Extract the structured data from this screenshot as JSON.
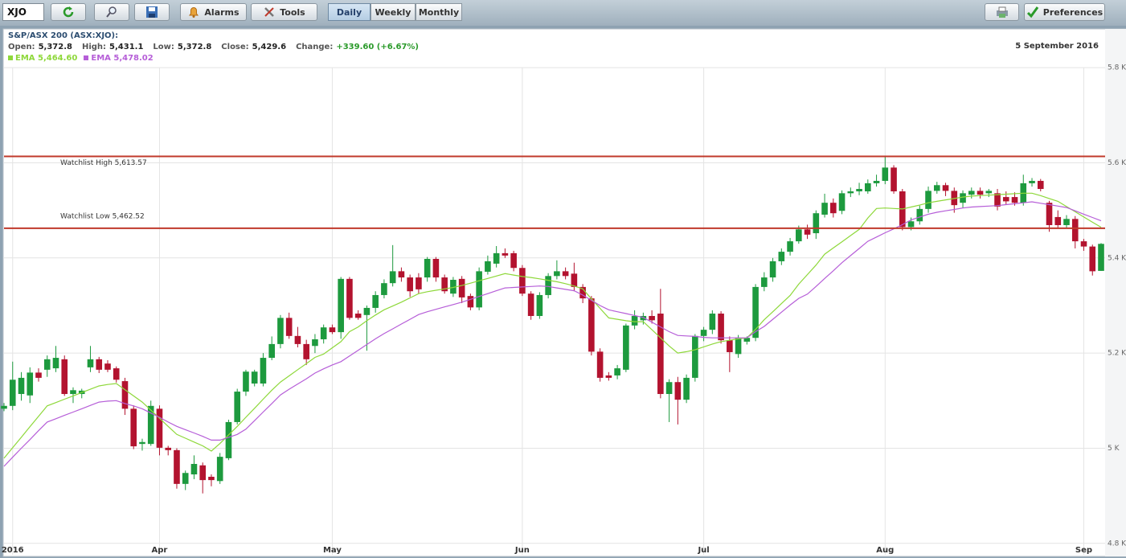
{
  "toolbar": {
    "symbol": "XJO",
    "buttons": [
      "Alarms",
      "Tools"
    ],
    "periods": [
      "Daily",
      "Weekly",
      "Monthly"
    ],
    "preferences": "Preferences"
  },
  "chart_data": {
    "type": "candlestick",
    "title": "S&P/ASX 200 (ASX:XJO):",
    "quote": [
      {
        "label": "Open:",
        "value": "5,372.8"
      },
      {
        "label": "High:",
        "value": "5,431.1"
      },
      {
        "label": "Low:",
        "value": "5,372.8"
      },
      {
        "label": "Close:",
        "value": "5,429.6"
      },
      {
        "label": "Change:",
        "value": "+339.60 (+6.67%)"
      }
    ],
    "date": "5 September 2016",
    "categories": [
      null,
      "2016",
      null,
      null,
      null,
      null,
      null,
      null,
      null,
      null,
      null,
      null,
      null,
      null,
      null,
      null,
      null,
      null,
      "Apr",
      null,
      null,
      null,
      null,
      null,
      null,
      null,
      null,
      null,
      null,
      null,
      null,
      null,
      null,
      null,
      null,
      null,
      null,
      null,
      "May",
      null,
      null,
      null,
      null,
      null,
      null,
      null,
      null,
      null,
      null,
      null,
      null,
      null,
      null,
      null,
      null,
      null,
      null,
      null,
      null,
      null,
      "Jun",
      null,
      null,
      null,
      null,
      null,
      null,
      null,
      null,
      null,
      null,
      null,
      null,
      null,
      null,
      null,
      null,
      null,
      null,
      null,
      null,
      "Jul",
      null,
      null,
      null,
      null,
      null,
      null,
      null,
      null,
      null,
      null,
      null,
      null,
      null,
      null,
      null,
      null,
      null,
      null,
      null,
      null,
      "Aug",
      null,
      null,
      null,
      null,
      null,
      null,
      null,
      null,
      null,
      null,
      null,
      null,
      null,
      null,
      null,
      null,
      null,
      null,
      null,
      null,
      null,
      null,
      "Sep",
      null,
      null
    ],
    "open": [
      5083,
      5089,
      5114,
      5111,
      5159,
      5165,
      5168,
      5187,
      5114,
      5114,
      5170,
      5187,
      5178,
      5168,
      5141,
      5083,
      5009,
      5009,
      5083,
      5001,
      4996,
      4925,
      4945,
      4964,
      4940,
      4931,
      4979,
      5055,
      5119,
      5136,
      5136,
      5190,
      5219,
      5274,
      5236,
      5219,
      5215,
      5229,
      5254,
      5244,
      5356,
      5283,
      5280,
      5295,
      5322,
      5347,
      5372,
      5359,
      5359,
      5359,
      5398,
      5359,
      5325,
      5356,
      5320,
      5296,
      5371,
      5388,
      5410,
      5410,
      5379,
      5325,
      5278,
      5322,
      5362,
      5372,
      5367,
      5339,
      5315,
      5203,
      5153,
      5153,
      5165,
      5258,
      5269,
      5278,
      5283,
      5114,
      5139,
      5102,
      5148,
      5236,
      5249,
      5283,
      5227,
      5198,
      5224,
      5232,
      5339,
      5359,
      5393,
      5413,
      5435,
      5460,
      5452,
      5491,
      5516,
      5499,
      5536,
      5540,
      5540,
      5557,
      5562,
      5590,
      5540,
      5465,
      5477,
      5503,
      5541,
      5553,
      5541,
      5516,
      5533,
      5541,
      5536,
      5536,
      5528,
      5528,
      5516,
      5557,
      5562,
      5516,
      5486,
      5469,
      5482,
      5435,
      5424,
      5372.8
    ],
    "high": [
      5095,
      5182,
      5160,
      5170,
      5168,
      5195,
      5215,
      5195,
      5128,
      5125,
      5215,
      5192,
      5185,
      5172,
      5148,
      5090,
      5020,
      5100,
      5090,
      5005,
      5000,
      4953,
      4985,
      4970,
      4945,
      4990,
      5060,
      5125,
      5165,
      5165,
      5200,
      5235,
      5280,
      5285,
      5255,
      5228,
      5240,
      5260,
      5260,
      5360,
      5360,
      5290,
      5300,
      5330,
      5355,
      5427,
      5380,
      5365,
      5368,
      5402,
      5402,
      5365,
      5360,
      5362,
      5325,
      5380,
      5405,
      5425,
      5420,
      5415,
      5385,
      5330,
      5328,
      5368,
      5395,
      5380,
      5390,
      5345,
      5320,
      5210,
      5160,
      5175,
      5262,
      5290,
      5285,
      5290,
      5335,
      5145,
      5150,
      5155,
      5240,
      5255,
      5290,
      5288,
      5235,
      5238,
      5235,
      5345,
      5370,
      5400,
      5420,
      5442,
      5468,
      5470,
      5500,
      5535,
      5525,
      5542,
      5548,
      5558,
      5565,
      5575,
      5612,
      5595,
      5545,
      5485,
      5510,
      5550,
      5560,
      5558,
      5548,
      5542,
      5548,
      5548,
      5545,
      5545,
      5540,
      5538,
      5575,
      5568,
      5566,
      5520,
      5500,
      5490,
      5488,
      5440,
      5428,
      5431.1
    ],
    "low": [
      5078,
      5080,
      5100,
      5095,
      5140,
      5150,
      5160,
      5110,
      5095,
      5105,
      5160,
      5158,
      5160,
      5138,
      5070,
      4998,
      4995,
      5005,
      4985,
      4985,
      4915,
      4912,
      4935,
      4905,
      4920,
      4925,
      4975,
      5050,
      5110,
      5130,
      5130,
      5185,
      5210,
      5230,
      5212,
      5175,
      5200,
      5220,
      5240,
      5230,
      5270,
      5270,
      5205,
      5285,
      5315,
      5340,
      5350,
      5318,
      5325,
      5350,
      5350,
      5325,
      5318,
      5305,
      5290,
      5290,
      5365,
      5380,
      5400,
      5372,
      5320,
      5270,
      5272,
      5315,
      5355,
      5355,
      5330,
      5305,
      5195,
      5140,
      5142,
      5145,
      5160,
      5250,
      5260,
      5262,
      5105,
      5055,
      5050,
      5095,
      5140,
      5225,
      5240,
      5220,
      5160,
      5190,
      5218,
      5225,
      5330,
      5350,
      5385,
      5405,
      5430,
      5440,
      5440,
      5485,
      5485,
      5492,
      5528,
      5532,
      5535,
      5550,
      5555,
      5535,
      5458,
      5458,
      5470,
      5495,
      5535,
      5530,
      5495,
      5505,
      5525,
      5525,
      5528,
      5500,
      5512,
      5510,
      5510,
      5550,
      5540,
      5455,
      5462,
      5462,
      5420,
      5415,
      5363,
      5372.8
    ],
    "close": [
      5089,
      5144,
      5148,
      5159,
      5148,
      5187,
      5190,
      5114,
      5122,
      5121,
      5187,
      5165,
      5165,
      5144,
      5083,
      5004,
      5013,
      5089,
      5001,
      4996,
      4925,
      4948,
      4967,
      4933,
      4933,
      4982,
      5055,
      5119,
      5161,
      5161,
      5190,
      5219,
      5274,
      5236,
      5219,
      5187,
      5229,
      5254,
      5244,
      5356,
      5274,
      5274,
      5295,
      5322,
      5347,
      5372,
      5359,
      5330,
      5334,
      5398,
      5359,
      5330,
      5354,
      5317,
      5296,
      5372,
      5393,
      5410,
      5405,
      5379,
      5325,
      5278,
      5322,
      5362,
      5372,
      5362,
      5339,
      5315,
      5203,
      5148,
      5148,
      5168,
      5258,
      5278,
      5278,
      5269,
      5114,
      5139,
      5102,
      5148,
      5236,
      5249,
      5283,
      5227,
      5202,
      5232,
      5232,
      5339,
      5359,
      5393,
      5413,
      5435,
      5460,
      5449,
      5494,
      5516,
      5494,
      5536,
      5540,
      5545,
      5557,
      5562,
      5590,
      5540,
      5465,
      5477,
      5503,
      5541,
      5553,
      5541,
      5511,
      5536,
      5541,
      5533,
      5541,
      5508,
      5519,
      5516,
      5557,
      5562,
      5545,
      5469,
      5469,
      5482,
      5435,
      5424,
      5372,
      5429.6
    ],
    "up_color": "#1d9a3e",
    "down_color": "#b3132f",
    "series": [
      {
        "name": "EMA 5,464.60",
        "color": "#8ed83a",
        "values": [
          4979,
          5001,
          5023,
          5045,
          5067,
          5089,
          5096,
          5103,
          5110,
          5117,
          5124,
          5131,
          5134,
          5136,
          5123,
          5110,
          5097,
          5080,
          5063,
          5046,
          5029,
          5021,
          5013,
          5005,
          4994,
          5010,
          5028,
          5046,
          5065,
          5084,
          5103,
          5122,
          5139,
          5152,
          5165,
          5178,
          5191,
          5198,
          5211,
          5224,
          5245,
          5255,
          5268,
          5280,
          5291,
          5299,
          5307,
          5316,
          5325,
          5329,
          5332,
          5335,
          5338,
          5342,
          5347,
          5352,
          5357,
          5362,
          5367,
          5364,
          5361,
          5359,
          5356,
          5353,
          5350,
          5346,
          5341,
          5335,
          5314,
          5294,
          5274,
          5271,
          5268,
          5266,
          5266,
          5249,
          5232,
          5215,
          5200,
          5203,
          5207,
          5213,
          5219,
          5224,
          5227,
          5230,
          5232,
          5250,
          5270,
          5287,
          5304,
          5321,
          5345,
          5365,
          5385,
          5408,
          5421,
          5434,
          5447,
          5460,
          5484,
          5504,
          5505,
          5504,
          5503,
          5507,
          5511,
          5516,
          5519,
          5522,
          5525,
          5528,
          5530,
          5531,
          5532,
          5533,
          5534,
          5535,
          5536,
          5536,
          5531,
          5525,
          5519,
          5508,
          5497,
          5486,
          5475,
          5464.6
        ]
      },
      {
        "name": "EMA 5,478.02",
        "color": "#b65ed8",
        "values": [
          4962,
          4981,
          5000,
          5018,
          5037,
          5055,
          5062,
          5069,
          5076,
          5083,
          5090,
          5097,
          5099,
          5100,
          5094,
          5089,
          5083,
          5074,
          5065,
          5055,
          5046,
          5039,
          5032,
          5025,
          5017,
          5017,
          5023,
          5029,
          5040,
          5058,
          5076,
          5094,
          5112,
          5124,
          5135,
          5146,
          5158,
          5167,
          5175,
          5182,
          5194,
          5206,
          5218,
          5230,
          5241,
          5251,
          5261,
          5271,
          5281,
          5287,
          5292,
          5297,
          5302,
          5307,
          5313,
          5319,
          5325,
          5331,
          5337,
          5338,
          5339,
          5340,
          5341,
          5340,
          5337,
          5334,
          5331,
          5322,
          5311,
          5300,
          5291,
          5287,
          5283,
          5279,
          5275,
          5265,
          5255,
          5245,
          5237,
          5236,
          5235,
          5233,
          5232,
          5232,
          5232,
          5232,
          5232,
          5245,
          5256,
          5271,
          5286,
          5301,
          5315,
          5324,
          5340,
          5357,
          5373,
          5390,
          5405,
          5420,
          5435,
          5444,
          5453,
          5461,
          5470,
          5480,
          5486,
          5492,
          5496,
          5499,
          5502,
          5505,
          5507,
          5508,
          5509,
          5510,
          5512,
          5514,
          5516,
          5518,
          5515,
          5512,
          5509,
          5506,
          5499,
          5492,
          5485,
          5478.02
        ]
      }
    ],
    "reference_lines": [
      {
        "label": "Watchlist High 5,613.57",
        "value": 5613.57
      },
      {
        "label": "Watchlist Low 5,462.52",
        "value": 5462.52
      }
    ],
    "reference_color": "#c0392b",
    "ylim": [
      4776,
      5878
    ],
    "yticks": [
      {
        "value": 4800,
        "label": "4.8 K"
      },
      {
        "value": 5000,
        "label": "5 K"
      },
      {
        "value": 5200,
        "label": "5.2 K"
      },
      {
        "value": 5400,
        "label": "5.4 K"
      },
      {
        "value": 5600,
        "label": "5.6 K"
      },
      {
        "value": 5800,
        "label": "5.8 K"
      }
    ],
    "grid": true
  }
}
